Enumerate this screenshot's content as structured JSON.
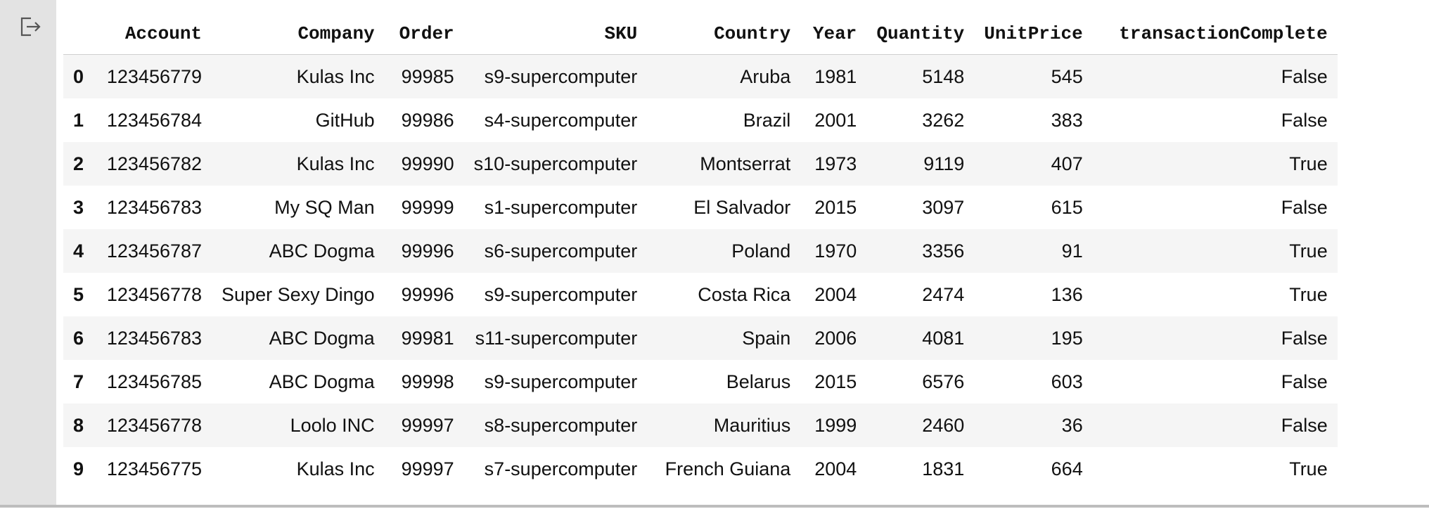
{
  "output": {
    "icon": "output-redirect-icon"
  },
  "table": {
    "columns": [
      "Account",
      "Company",
      "Order",
      "SKU",
      "Country",
      "Year",
      "Quantity",
      "UnitPrice",
      "transactionComplete"
    ],
    "rows": [
      {
        "index": "0",
        "cells": [
          "123456779",
          "Kulas Inc",
          "99985",
          "s9-supercomputer",
          "Aruba",
          "1981",
          "5148",
          "545",
          "False"
        ]
      },
      {
        "index": "1",
        "cells": [
          "123456784",
          "GitHub",
          "99986",
          "s4-supercomputer",
          "Brazil",
          "2001",
          "3262",
          "383",
          "False"
        ]
      },
      {
        "index": "2",
        "cells": [
          "123456782",
          "Kulas Inc",
          "99990",
          "s10-supercomputer",
          "Montserrat",
          "1973",
          "9119",
          "407",
          "True"
        ]
      },
      {
        "index": "3",
        "cells": [
          "123456783",
          "My SQ Man",
          "99999",
          "s1-supercomputer",
          "El Salvador",
          "2015",
          "3097",
          "615",
          "False"
        ]
      },
      {
        "index": "4",
        "cells": [
          "123456787",
          "ABC Dogma",
          "99996",
          "s6-supercomputer",
          "Poland",
          "1970",
          "3356",
          "91",
          "True"
        ]
      },
      {
        "index": "5",
        "cells": [
          "123456778",
          "Super Sexy Dingo",
          "99996",
          "s9-supercomputer",
          "Costa Rica",
          "2004",
          "2474",
          "136",
          "True"
        ]
      },
      {
        "index": "6",
        "cells": [
          "123456783",
          "ABC Dogma",
          "99981",
          "s11-supercomputer",
          "Spain",
          "2006",
          "4081",
          "195",
          "False"
        ]
      },
      {
        "index": "7",
        "cells": [
          "123456785",
          "ABC Dogma",
          "99998",
          "s9-supercomputer",
          "Belarus",
          "2015",
          "6576",
          "603",
          "False"
        ]
      },
      {
        "index": "8",
        "cells": [
          "123456778",
          "Loolo INC",
          "99997",
          "s8-supercomputer",
          "Mauritius",
          "1999",
          "2460",
          "36",
          "False"
        ]
      },
      {
        "index": "9",
        "cells": [
          "123456775",
          "Kulas Inc",
          "99997",
          "s7-supercomputer",
          "French Guiana",
          "2004",
          "1831",
          "664",
          "True"
        ]
      }
    ]
  }
}
